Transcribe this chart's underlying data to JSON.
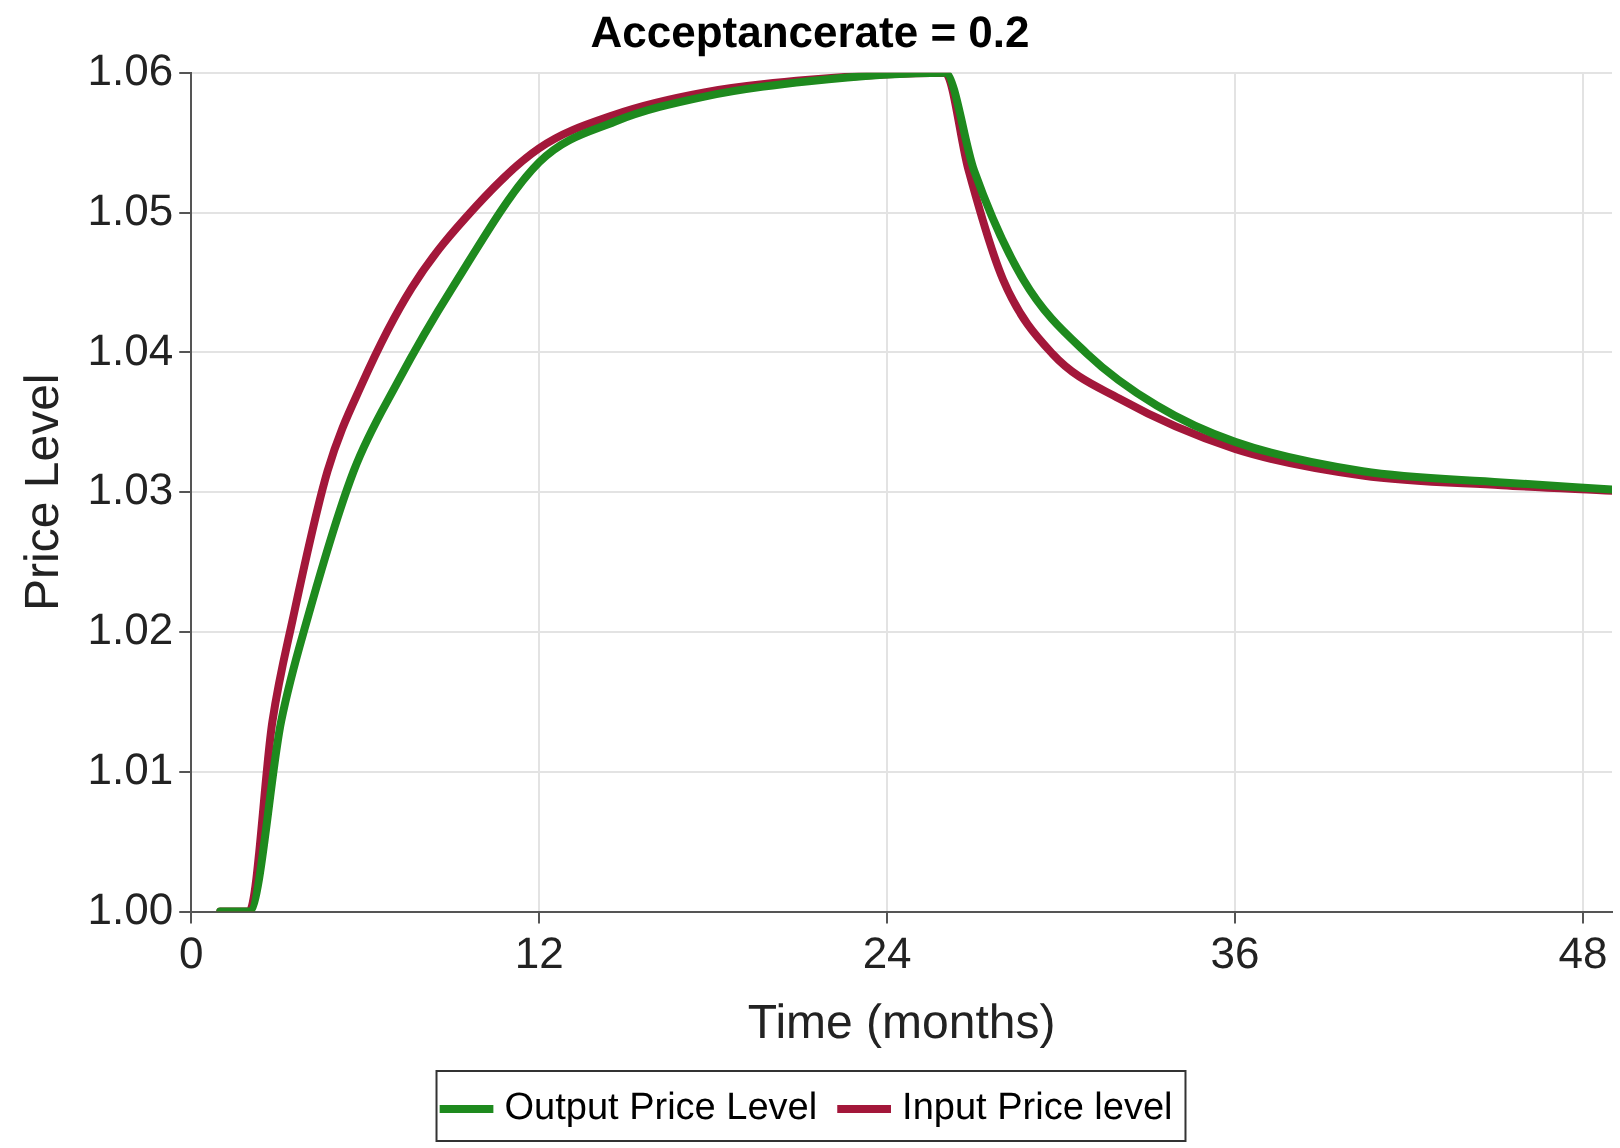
{
  "chart_data": {
    "type": "line",
    "title": "Acceptancerate = 0.2",
    "xlabel": "Time (months)",
    "ylabel": "Price Level",
    "xlim": [
      0,
      49
    ],
    "xticks": [
      0,
      12,
      24,
      36,
      48
    ],
    "ylim": [
      1.0,
      1.06
    ],
    "yticks": [
      {
        "value": 1.0,
        "label": "1.00"
      },
      1.01,
      1.02,
      1.03,
      1.04,
      1.05,
      1.06
    ],
    "grid": true,
    "legend": "bottom",
    "marker": "none",
    "line_style": "solid",
    "series": [
      {
        "name": "Output Price Level",
        "color": "#1e8a1e",
        "x": [
          1,
          2,
          3.1,
          4.0,
          5.6,
          7.1,
          9.0,
          12,
          14.6,
          17.7,
          21.3,
          26,
          27,
          28.7,
          30.9,
          33.3,
          36,
          40.4,
          45.2,
          49
        ],
        "values": [
          1.0,
          1.0,
          1.0136,
          1.0209,
          1.0315,
          1.0378,
          1.0446,
          1.0536,
          1.0565,
          1.0583,
          1.0594,
          1.06,
          1.053,
          1.0452,
          1.0399,
          1.0362,
          1.0336,
          1.0315,
          1.0307,
          1.0302
        ]
      },
      {
        "name": "Input Price level",
        "color": "#a3173a",
        "x": [
          1,
          2,
          2.8,
          3.5,
          4.7,
          5.9,
          7.6,
          9.8,
          12,
          14.6,
          17.7,
          21.3,
          26,
          26.8,
          28.0,
          29.7,
          32.0,
          36,
          40.4,
          45.2,
          49
        ],
        "values": [
          1.0,
          1.0,
          1.0136,
          1.0209,
          1.0315,
          1.0378,
          1.0446,
          1.0504,
          1.0546,
          1.057,
          1.0586,
          1.0595,
          1.06,
          1.0531,
          1.0452,
          1.0399,
          1.0367,
          1.0331,
          1.0312,
          1.0305,
          1.0301
        ]
      }
    ]
  }
}
